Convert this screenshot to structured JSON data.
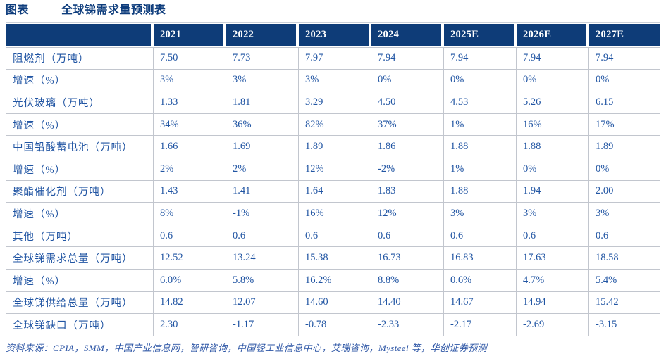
{
  "title": {
    "prefix": "图表",
    "text": "全球锑需求量预测表"
  },
  "table": {
    "columns": [
      "",
      "2021",
      "2022",
      "2023",
      "2024",
      "2025E",
      "2026E",
      "2027E"
    ],
    "rows": [
      {
        "label": "阻燃剂（万吨）",
        "values": [
          "7.50",
          "7.73",
          "7.97",
          "7.94",
          "7.94",
          "7.94",
          "7.94"
        ]
      },
      {
        "label": "增速（%）",
        "values": [
          "3%",
          "3%",
          "3%",
          "0%",
          "0%",
          "0%",
          "0%"
        ]
      },
      {
        "label": "光伏玻璃（万吨）",
        "values": [
          "1.33",
          "1.81",
          "3.29",
          "4.50",
          "4.53",
          "5.26",
          "6.15"
        ]
      },
      {
        "label": "增速（%）",
        "values": [
          "34%",
          "36%",
          "82%",
          "37%",
          "1%",
          "16%",
          "17%"
        ]
      },
      {
        "label": "中国铅酸蓄电池（万吨）",
        "values": [
          "1.66",
          "1.69",
          "1.89",
          "1.86",
          "1.88",
          "1.88",
          "1.89"
        ]
      },
      {
        "label": "增速（%）",
        "values": [
          "2%",
          "2%",
          "12%",
          "-2%",
          "1%",
          "0%",
          "0%"
        ]
      },
      {
        "label": "聚酯催化剂（万吨）",
        "values": [
          "1.43",
          "1.41",
          "1.64",
          "1.83",
          "1.88",
          "1.94",
          "2.00"
        ]
      },
      {
        "label": "增速（%）",
        "values": [
          "8%",
          "-1%",
          "16%",
          "12%",
          "3%",
          "3%",
          "3%"
        ]
      },
      {
        "label": "其他（万吨）",
        "values": [
          "0.6",
          "0.6",
          "0.6",
          "0.6",
          "0.6",
          "0.6",
          "0.6"
        ]
      },
      {
        "label": "全球锑需求总量（万吨）",
        "values": [
          "12.52",
          "13.24",
          "15.38",
          "16.73",
          "16.83",
          "17.63",
          "18.58"
        ]
      },
      {
        "label": "增速（%）",
        "values": [
          "6.0%",
          "5.8%",
          "16.2%",
          "8.8%",
          "0.6%",
          "4.7%",
          "5.4%"
        ]
      },
      {
        "label": "全球锑供给总量（万吨）",
        "values": [
          "14.82",
          "12.07",
          "14.60",
          "14.40",
          "14.67",
          "14.94",
          "15.42"
        ]
      },
      {
        "label": "全球锑缺口（万吨）",
        "values": [
          "2.30",
          "-1.17",
          "-0.78",
          "-2.33",
          "-2.17",
          "-2.69",
          "-3.15"
        ]
      }
    ]
  },
  "footer": {
    "source": "资料来源：CPIA，SMM，中国产业信息网，智研咨询，中国轻工业信息中心，艾瑞咨询，Mysteel 等，华创证券预测"
  },
  "colors": {
    "header_bg": "#0E3C78",
    "header_text": "#ffffff",
    "cell_text": "#2155A3",
    "title_text": "#0D3C7C",
    "border": "#C2C6CE",
    "source_text": "#2C55A5"
  }
}
